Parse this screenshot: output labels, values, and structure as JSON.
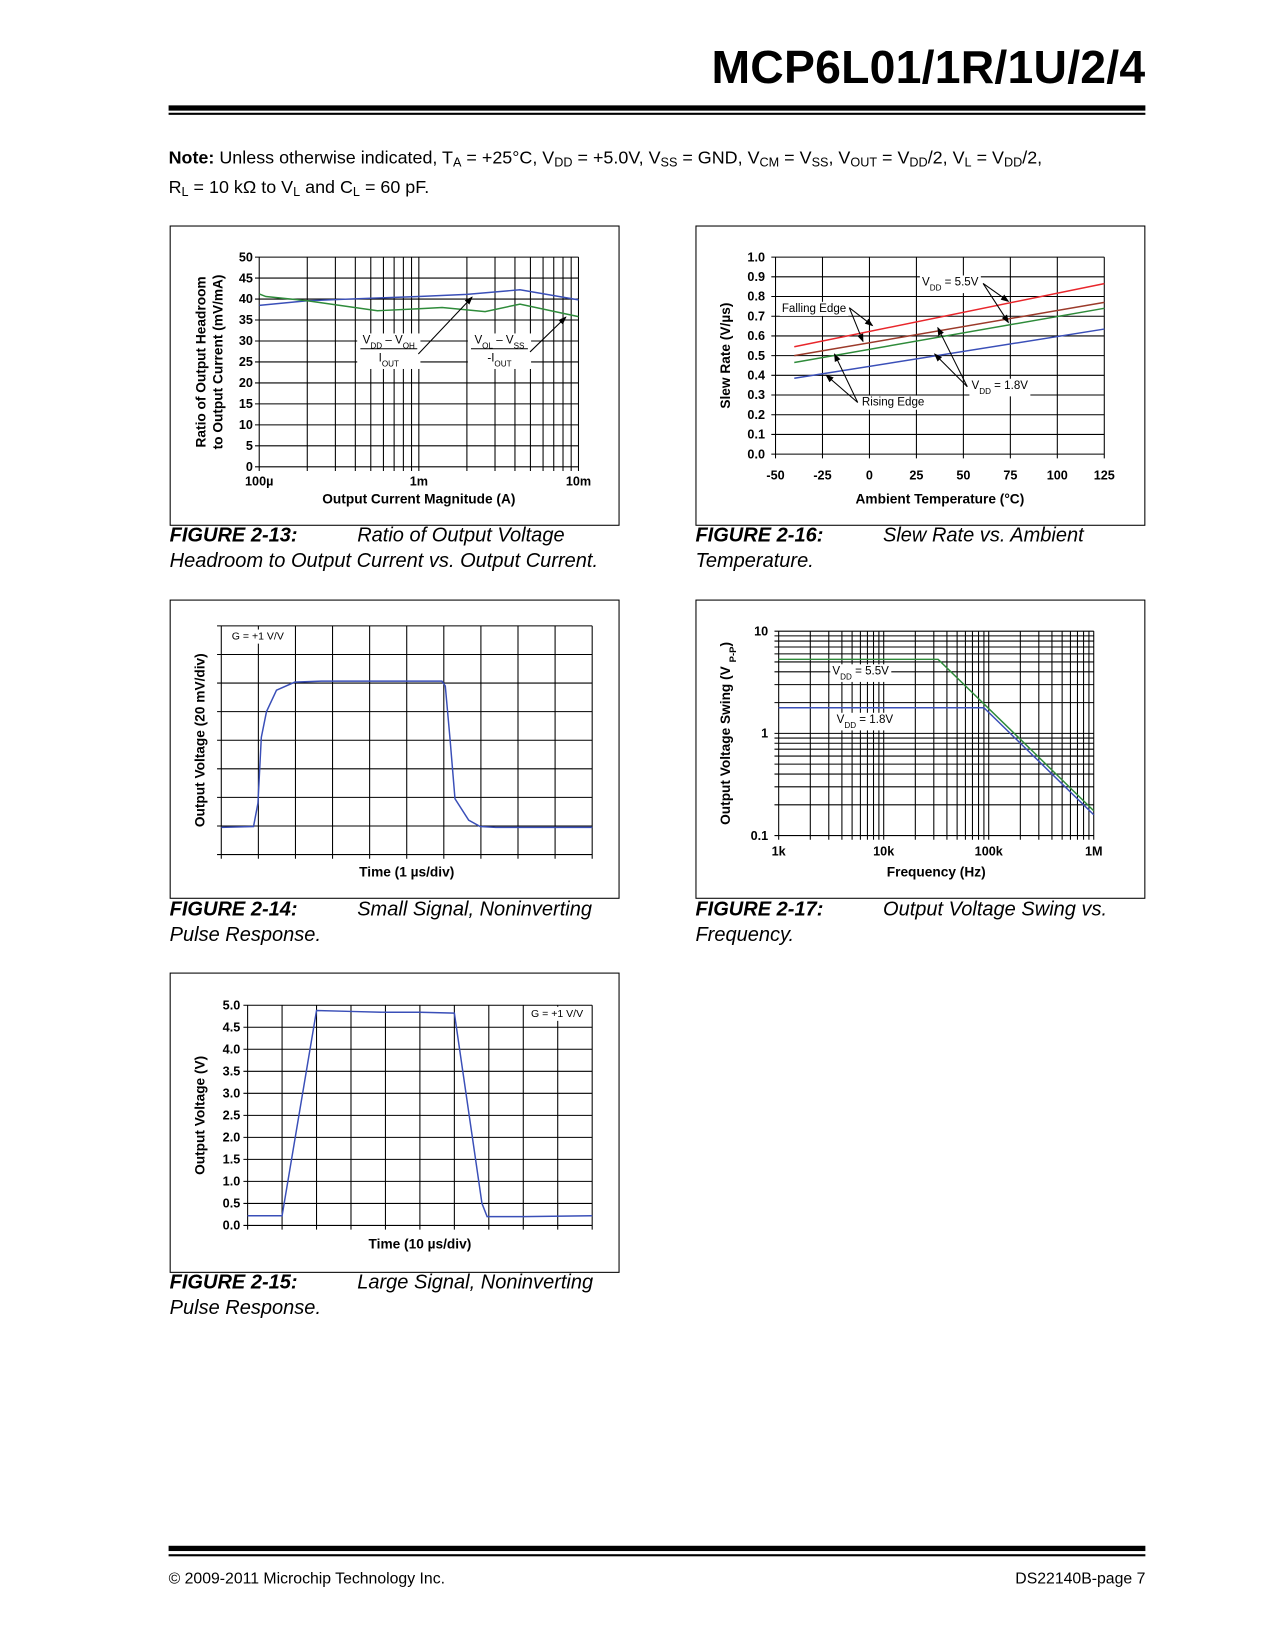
{
  "header": {
    "title": "MCP6L01/1R/1U/2/4"
  },
  "note": {
    "lead": "Note:",
    "line1": [
      {
        "t": " Unless otherwise indicated, T"
      },
      {
        "t": "A",
        "sub": true
      },
      {
        "t": " = +25°C, V"
      },
      {
        "t": "DD",
        "sub": true
      },
      {
        "t": " = +5.0V, V"
      },
      {
        "t": "SS",
        "sub": true
      },
      {
        "t": " = GND, V"
      },
      {
        "t": "CM",
        "sub": true
      },
      {
        "t": " = V"
      },
      {
        "t": "SS",
        "sub": true
      },
      {
        "t": ", V"
      },
      {
        "t": "OUT",
        "sub": true
      },
      {
        "t": " = V"
      },
      {
        "t": "DD",
        "sub": true
      },
      {
        "t": "/2, V"
      },
      {
        "t": "L",
        "sub": true
      },
      {
        "t": " = V"
      },
      {
        "t": "DD",
        "sub": true
      },
      {
        "t": "/2,"
      }
    ],
    "line2": [
      {
        "t": "R"
      },
      {
        "t": "L",
        "sub": true
      },
      {
        "t": " = 10 kΩ to V"
      },
      {
        "t": "L",
        "sub": true
      },
      {
        "t": " and C"
      },
      {
        "t": "L",
        "sub": true
      },
      {
        "t": " = 60 pF."
      }
    ]
  },
  "figures": [
    {
      "number": "FIGURE 2-13:",
      "caption_line1": "Ratio of Output Voltage",
      "caption_line2": "Headroom to Output Current vs. Output Current."
    },
    {
      "number": "FIGURE 2-14:",
      "caption_line1": "Small Signal, Noninverting",
      "caption_line2": "Pulse Response."
    },
    {
      "number": "FIGURE 2-15:",
      "caption_line1": "Large Signal, Noninverting",
      "caption_line2": "Pulse Response."
    },
    {
      "number": "FIGURE 2-16:",
      "caption_line1": "Slew Rate vs. Ambient",
      "caption_line2": "Temperature."
    },
    {
      "number": "FIGURE 2-17:",
      "caption_line1": "Output Voltage Swing vs.",
      "caption_line2": "Frequency."
    }
  ],
  "footer": {
    "copyright": "© 2009-2011 Microchip Technology Inc.",
    "page": "DS22140B-page 7"
  },
  "chart_data": [
    {
      "type": "line",
      "xlabel": "Output Current Magnitude (A)",
      "ylabel": [
        [
          {
            "t": "Ratio of Output Headroom"
          }
        ],
        [
          {
            "t": "to Output Current (mV/mA)"
          }
        ]
      ],
      "x_scale": "log",
      "y_scale": "linear",
      "xlim": [
        0.0001,
        0.01
      ],
      "ylim": [
        0,
        50
      ],
      "grid": {
        "y_step": 5,
        "x_minor": true
      },
      "x_ticks": [
        {
          "v": 0.0001,
          "label": "100µ"
        },
        {
          "v": 0.001,
          "label": "1m"
        },
        {
          "v": 0.01,
          "label": "10m"
        }
      ],
      "y_ticks": [
        {
          "v": 0,
          "label": "0"
        },
        {
          "v": 5,
          "label": "5"
        },
        {
          "v": 10,
          "label": "10"
        },
        {
          "v": 15,
          "label": "15"
        },
        {
          "v": 20,
          "label": "20"
        },
        {
          "v": 25,
          "label": "25"
        },
        {
          "v": 30,
          "label": "30"
        },
        {
          "v": 35,
          "label": "35"
        },
        {
          "v": 40,
          "label": "40"
        },
        {
          "v": 45,
          "label": "45"
        },
        {
          "v": 50,
          "label": "50"
        }
      ],
      "series": [
        {
          "color": "#3a4fb8",
          "points": [
            [
              0.0001,
              38.5
            ],
            [
              0.0002,
              39.6
            ],
            [
              0.0005,
              40.2
            ],
            [
              0.001,
              40.6
            ],
            [
              0.002,
              41.1
            ],
            [
              0.0043,
              42.2
            ],
            [
              0.01,
              39.8
            ]
          ]
        },
        {
          "color": "#2e8b3a",
          "points": [
            [
              0.0001,
              41.2
            ],
            [
              0.00011,
              40.6
            ],
            [
              0.0002,
              39.6
            ],
            [
              0.00055,
              37.2
            ],
            [
              0.001,
              37.7
            ],
            [
              0.0014,
              38.0
            ],
            [
              0.0026,
              37.0
            ],
            [
              0.0043,
              38.8
            ],
            [
              0.01,
              35.8
            ]
          ]
        }
      ],
      "annotations": [
        {
          "num": [
            {
              "t": "V"
            },
            {
              "t": "DD",
              "sub": true
            },
            {
              "t": " – V"
            },
            {
              "t": "OH",
              "sub": true
            }
          ],
          "den": [
            {
              "t": "I"
            },
            {
              "t": "OUT",
              "sub": true
            }
          ]
        },
        {
          "num": [
            {
              "t": "V"
            },
            {
              "t": "OL",
              "sub": true
            },
            {
              "t": " – V"
            },
            {
              "t": "SS",
              "sub": true
            }
          ],
          "den": [
            {
              "t": "-I"
            },
            {
              "t": "OUT",
              "sub": true
            }
          ]
        }
      ]
    },
    {
      "type": "line",
      "xlabel": "Time (1 µs/div)",
      "ylabel": [
        [
          {
            "t": "Output Voltage (20 mV/div)"
          }
        ]
      ],
      "x_scale": "linear",
      "y_scale": "linear",
      "xlim": [
        0,
        10
      ],
      "ylim": [
        0,
        160
      ],
      "grid": {
        "x_step": 1,
        "y_step": 20
      },
      "x_ticks": [],
      "y_ticks": [],
      "series": [
        {
          "color": "#3a4fb8",
          "points": [
            [
              0,
              19
            ],
            [
              0.87,
              19.6
            ],
            [
              0.99,
              36
            ],
            [
              1.08,
              82
            ],
            [
              1.22,
              100
            ],
            [
              1.49,
              115
            ],
            [
              1.98,
              120.6
            ],
            [
              2.7,
              121.4
            ],
            [
              5.95,
              121.4
            ],
            [
              6.04,
              118
            ],
            [
              6.17,
              80
            ],
            [
              6.3,
              39
            ],
            [
              6.67,
              24
            ],
            [
              6.98,
              19.6
            ],
            [
              7.4,
              19
            ],
            [
              10,
              19
            ]
          ]
        }
      ],
      "annotations": [
        {
          "segments": [
            {
              "t": "G = +1 V/V"
            }
          ]
        }
      ]
    },
    {
      "type": "line",
      "xlabel": "Time (10 µs/div)",
      "ylabel": [
        [
          {
            "t": "Output Voltage (V)"
          }
        ]
      ],
      "x_scale": "linear",
      "y_scale": "linear",
      "xlim": [
        0,
        100
      ],
      "ylim": [
        0,
        5
      ],
      "grid": {
        "x_step": 10,
        "y_step": 0.5
      },
      "x_ticks": [],
      "y_ticks": [
        {
          "v": 0,
          "label": "0.0"
        },
        {
          "v": 0.5,
          "label": "0.5"
        },
        {
          "v": 1,
          "label": "1.0"
        },
        {
          "v": 1.5,
          "label": "1.5"
        },
        {
          "v": 2,
          "label": "2.0"
        },
        {
          "v": 2.5,
          "label": "2.5"
        },
        {
          "v": 3,
          "label": "3.0"
        },
        {
          "v": 3.5,
          "label": "3.5"
        },
        {
          "v": 4,
          "label": "4.0"
        },
        {
          "v": 4.5,
          "label": "4.5"
        },
        {
          "v": 5,
          "label": "5.0"
        }
      ],
      "series": [
        {
          "color": "#3a4fb8",
          "points": [
            [
              0,
              0.22
            ],
            [
              10,
              0.22
            ],
            [
              20,
              4.88
            ],
            [
              30,
              4.86
            ],
            [
              40,
              4.84
            ],
            [
              50,
              4.84
            ],
            [
              60,
              4.82
            ],
            [
              68,
              0.5
            ],
            [
              69.5,
              0.2
            ],
            [
              80,
              0.2
            ],
            [
              100,
              0.22
            ]
          ]
        }
      ],
      "annotations": [
        {
          "segments": [
            {
              "t": "G = +1 V/V"
            }
          ]
        }
      ]
    },
    {
      "type": "line",
      "xlabel": "Ambient Temperature (°C)",
      "ylabel": [
        [
          {
            "t": "Slew Rate (V/µs)"
          }
        ]
      ],
      "x_scale": "linear",
      "y_scale": "linear",
      "xlim": [
        -50,
        125
      ],
      "ylim": [
        0,
        1
      ],
      "grid": {
        "x_step": 25,
        "y_step": 0.1
      },
      "x_ticks": [
        {
          "v": -50,
          "label": "-50"
        },
        {
          "v": -25,
          "label": "-25"
        },
        {
          "v": 0,
          "label": "0"
        },
        {
          "v": 25,
          "label": "25"
        },
        {
          "v": 50,
          "label": "50"
        },
        {
          "v": 75,
          "label": "75"
        },
        {
          "v": 100,
          "label": "100"
        },
        {
          "v": 125,
          "label": "125"
        }
      ],
      "y_ticks": [
        {
          "v": 0,
          "label": "0.0"
        },
        {
          "v": 0.1,
          "label": "0.1"
        },
        {
          "v": 0.2,
          "label": "0.2"
        },
        {
          "v": 0.3,
          "label": "0.3"
        },
        {
          "v": 0.4,
          "label": "0.4"
        },
        {
          "v": 0.5,
          "label": "0.5"
        },
        {
          "v": 0.6,
          "label": "0.6"
        },
        {
          "v": 0.7,
          "label": "0.7"
        },
        {
          "v": 0.8,
          "label": "0.8"
        },
        {
          "v": 0.9,
          "label": "0.9"
        },
        {
          "v": 1,
          "label": "1.0"
        }
      ],
      "series": [
        {
          "color": "#e8262b",
          "points": [
            [
              -40,
              0.545
            ],
            [
              125,
              0.865
            ]
          ]
        },
        {
          "color": "#9b3a2a",
          "points": [
            [
              -40,
              0.5
            ],
            [
              125,
              0.77
            ]
          ]
        },
        {
          "color": "#2e8b3a",
          "points": [
            [
              -40,
              0.465
            ],
            [
              125,
              0.74
            ]
          ]
        },
        {
          "color": "#3a4fb8",
          "points": [
            [
              -40,
              0.385
            ],
            [
              125,
              0.635
            ]
          ]
        }
      ],
      "annotations": [
        {
          "segments": [
            {
              "t": "V"
            },
            {
              "t": "DD",
              "sub": true
            },
            {
              "t": " = 5.5V"
            }
          ]
        },
        {
          "segments": [
            {
              "t": "Falling Edge"
            }
          ]
        },
        {
          "segments": [
            {
              "t": "Rising Edge"
            }
          ]
        },
        {
          "segments": [
            {
              "t": "V"
            },
            {
              "t": "DD",
              "sub": true
            },
            {
              "t": " = 1.8V"
            }
          ]
        }
      ]
    },
    {
      "type": "line",
      "xlabel": "Frequency (Hz)",
      "ylabel": [
        [
          {
            "t": "Output Voltage Swing (V "
          },
          {
            "t": "P-P",
            "sub": true
          },
          {
            "t": ")"
          }
        ]
      ],
      "x_scale": "log",
      "y_scale": "log",
      "xlim": [
        1000,
        1000000
      ],
      "ylim": [
        0.1,
        10
      ],
      "grid": {
        "x_minor": true,
        "y_minor": true
      },
      "x_ticks": [
        {
          "v": 1000,
          "label": "1k"
        },
        {
          "v": 10000,
          "label": "10k"
        },
        {
          "v": 100000,
          "label": "100k"
        },
        {
          "v": 1000000,
          "label": "1M"
        }
      ],
      "y_ticks": [
        {
          "v": 0.1,
          "label": "0.1"
        },
        {
          "v": 1,
          "label": "1"
        },
        {
          "v": 10,
          "label": "10"
        }
      ],
      "series": [
        {
          "color": "#2e8b3a",
          "points": [
            [
              1000,
              5.3
            ],
            [
              33000,
              5.3
            ],
            [
              1000000,
              0.175
            ]
          ]
        },
        {
          "color": "#3a4fb8",
          "points": [
            [
              1000,
              1.78
            ],
            [
              90000,
              1.78
            ],
            [
              1000000,
              0.16
            ]
          ]
        }
      ],
      "annotations": [
        {
          "segments": [
            {
              "t": "V"
            },
            {
              "t": "DD",
              "sub": true
            },
            {
              "t": " = 5.5V"
            }
          ]
        },
        {
          "segments": [
            {
              "t": "V"
            },
            {
              "t": "DD",
              "sub": true
            },
            {
              "t": " = 1.8V"
            }
          ]
        }
      ]
    }
  ]
}
